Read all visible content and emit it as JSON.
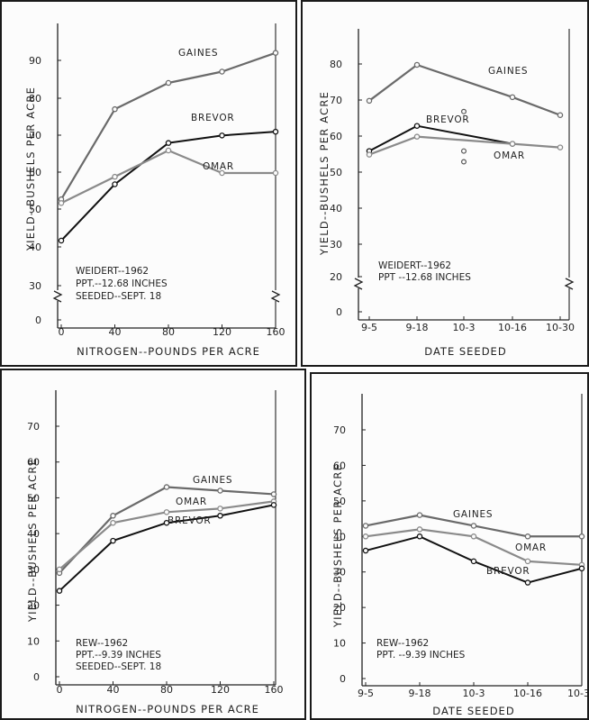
{
  "chart_data": [
    {
      "type": "line",
      "xlabel": "NITROGEN--POUNDS PER ACRE",
      "ylabel": "YIELD--BUSHELS PER ACRE",
      "x": [
        0,
        40,
        80,
        120,
        160
      ],
      "x_ticks": [
        "0",
        "40",
        "80",
        "120",
        "160"
      ],
      "y_ticks": [
        "0",
        "30",
        "40",
        "50",
        "60",
        "70",
        "80",
        "90"
      ],
      "y_break": true,
      "series": [
        {
          "name": "GAINES",
          "values": [
            53,
            77,
            84,
            87,
            92
          ]
        },
        {
          "name": "BREVOR",
          "values": [
            42,
            57,
            68,
            70,
            71
          ]
        },
        {
          "name": "OMAR",
          "values": [
            52,
            59,
            66,
            60,
            60
          ]
        }
      ],
      "annotation": [
        "WEIDERT--1962",
        "PPT.--12.68 INCHES",
        "SEEDED--SEPT. 18"
      ]
    },
    {
      "type": "line",
      "xlabel": "DATE SEEDED",
      "ylabel": "YIELD--BUSHELS PER ACRE",
      "x": [
        "9-5",
        "9-18",
        "10-3",
        "10-16",
        "10-30"
      ],
      "x_ticks": [
        "9-5",
        "9-18",
        "10-3",
        "10-16",
        "10-30"
      ],
      "y_ticks": [
        "0",
        "20",
        "30",
        "40",
        "50",
        "60",
        "70",
        "80"
      ],
      "y_break": true,
      "series": [
        {
          "name": "GAINES",
          "values": [
            69,
            79,
            null,
            70,
            65
          ]
        },
        {
          "name": "BREVOR",
          "values": [
            55,
            62,
            null,
            57,
            null
          ]
        },
        {
          "name": "OMAR",
          "values": [
            54,
            59,
            null,
            57,
            56
          ]
        }
      ],
      "extra_points": [
        [
          2,
          66
        ],
        [
          2,
          55
        ],
        [
          2,
          52
        ]
      ],
      "annotation": [
        "WEIDERT--1962",
        "PPT      --12.68 INCHES"
      ]
    },
    {
      "type": "line",
      "xlabel": "NITROGEN--POUNDS PER ACRE",
      "ylabel": "YIELD--BUSHELS PER ACRE",
      "x": [
        0,
        40,
        80,
        120,
        160
      ],
      "x_ticks": [
        "0",
        "40",
        "80",
        "120",
        "160"
      ],
      "y_ticks": [
        "0",
        "10",
        "20",
        "30",
        "40",
        "50",
        "60",
        "70"
      ],
      "series": [
        {
          "name": "GAINES",
          "values": [
            29,
            45,
            53,
            52,
            51
          ]
        },
        {
          "name": "OMAR",
          "values": [
            30,
            43,
            46,
            47,
            49
          ]
        },
        {
          "name": "BREVOR",
          "values": [
            24,
            38,
            43,
            45,
            48
          ]
        }
      ],
      "annotation": [
        "REW--1962",
        "PPT.--9.39 INCHES",
        "SEEDED--SEPT. 18"
      ]
    },
    {
      "type": "line",
      "xlabel": "DATE SEEDED",
      "ylabel": "YIELD--BUSHELS PER ACRE",
      "x": [
        "9-5",
        "9-18",
        "10-3",
        "10-16",
        "10-30"
      ],
      "x_ticks": [
        "9-5",
        "9-18",
        "10-3",
        "10-16",
        "10-30"
      ],
      "y_ticks": [
        "0",
        "10",
        "20",
        "30",
        "40",
        "50",
        "60",
        "70"
      ],
      "series": [
        {
          "name": "GAINES",
          "values": [
            43,
            46,
            43,
            40,
            40
          ]
        },
        {
          "name": "OMAR",
          "values": [
            40,
            42,
            40,
            33,
            32
          ]
        },
        {
          "name": "BREVOR",
          "values": [
            36,
            40,
            33,
            27,
            31
          ]
        }
      ],
      "annotation": [
        "REW--1962",
        "PPT. --9.39 INCHES"
      ]
    }
  ]
}
